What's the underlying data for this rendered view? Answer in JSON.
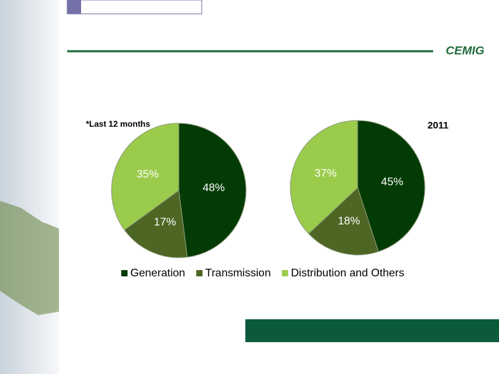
{
  "logo": "CEMIG",
  "legend": [
    "Generation",
    "Transmission",
    "Distribution and Others"
  ],
  "chart_data": [
    {
      "type": "pie",
      "annotation": "*Last 12 months",
      "values": [
        48,
        17,
        35
      ],
      "value_labels": [
        "48%",
        "17%",
        "35%"
      ],
      "colors": [
        "#033b04",
        "#4d6624",
        "#9bcb4b"
      ]
    },
    {
      "type": "pie",
      "title": "2011",
      "values": [
        45,
        18,
        37
      ],
      "value_labels": [
        "45%",
        "18%",
        "37%"
      ],
      "colors": [
        "#033b04",
        "#4d6624",
        "#9bcb4b"
      ]
    }
  ]
}
